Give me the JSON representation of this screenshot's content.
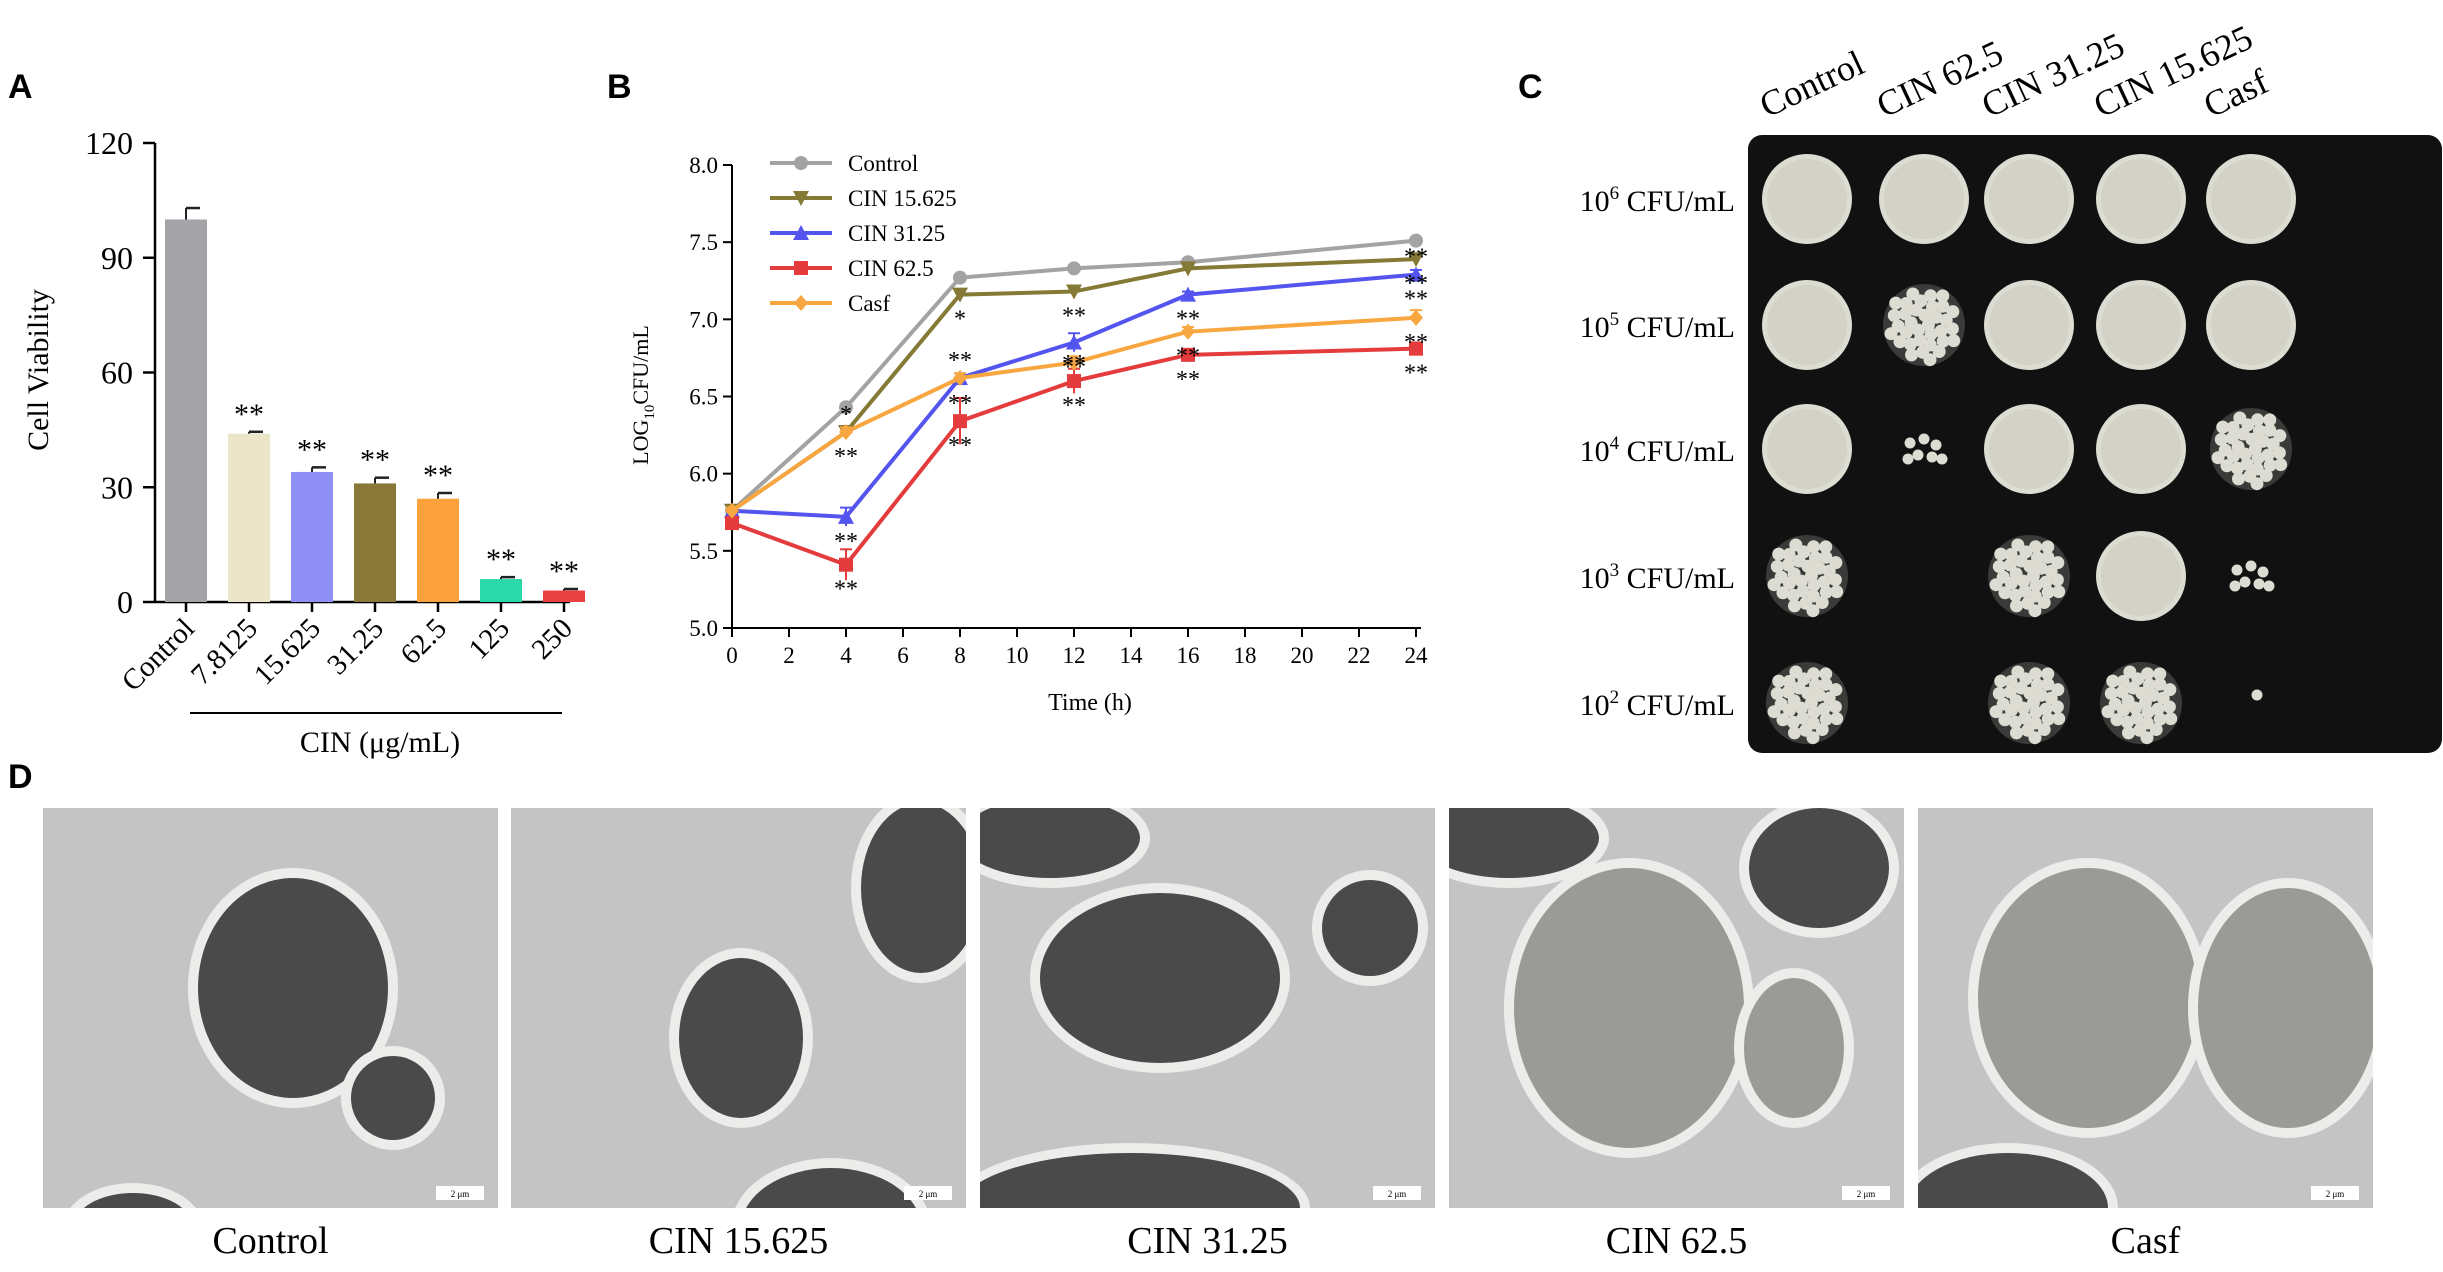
{
  "panel_labels": {
    "a": "A",
    "b": "B",
    "c": "C",
    "d": "D"
  },
  "colors": {
    "gray": "#a3a3a8",
    "cream": "#ece6c8",
    "periwinkle": "#8f8ff5",
    "olive": "#8a7838",
    "orange": "#fba23c",
    "mint": "#2bd9a8",
    "red": "#e84141",
    "line_control": "#a3a3a3",
    "line_olive": "#857936",
    "line_blue": "#5454ef",
    "line_red": "#e43c3c",
    "line_orange": "#f8a640",
    "plate": "#111112",
    "colony": "#dcdcd2",
    "tem_bg": "#c4c4c4",
    "tem_cell": "#4a4a4a"
  },
  "chart_data": [
    {
      "type": "bar",
      "ylabel": "Cell Viability",
      "xgroup_label": "CIN (μg/mL)",
      "ylim": [
        0,
        120
      ],
      "yticks": [
        0,
        30,
        60,
        90,
        120
      ],
      "categories": [
        "Control",
        "7.8125",
        "15.625",
        "31.25",
        "62.5",
        "125",
        "250"
      ],
      "values": [
        100,
        44,
        34,
        31,
        27,
        6,
        3
      ],
      "errors": [
        3,
        0.5,
        1.2,
        1.5,
        1.5,
        0.5,
        0.4
      ],
      "significance": [
        "",
        "**",
        "**",
        "**",
        "**",
        "**",
        "**"
      ],
      "bar_colors": [
        "#a3a3a8",
        "#ece6c8",
        "#8f8ff5",
        "#8a7838",
        "#fba23c",
        "#2bd9a8",
        "#e84141"
      ]
    },
    {
      "type": "line",
      "xlabel": "Time (h)",
      "ylabel_main": "LOG",
      "ylabel_sub": "10",
      "ylabel_rest": "CFU/mL",
      "xlim": [
        0,
        24
      ],
      "ylim": [
        5.0,
        8.0
      ],
      "xticks": [
        0,
        2,
        4,
        6,
        8,
        10,
        12,
        14,
        16,
        18,
        20,
        22,
        24
      ],
      "yticks": [
        "5.0",
        "5.5",
        "6.0",
        "6.5",
        "7.0",
        "7.5",
        "8.0"
      ],
      "x": [
        0,
        4,
        8,
        12,
        16,
        24
      ],
      "legend_position": "top-left",
      "series": [
        {
          "name": "Control",
          "marker": "circle",
          "color": "#a3a3a3",
          "values": [
            5.76,
            6.43,
            7.27,
            7.33,
            7.37,
            7.51
          ],
          "errors": [
            0.02,
            0.02,
            0.02,
            0.02,
            0.02,
            0.02
          ],
          "labels_above": [
            "",
            "",
            "",
            "",
            "",
            ""
          ],
          "labels_below": [
            "",
            "",
            "",
            "",
            "",
            ""
          ]
        },
        {
          "name": "CIN 15.625",
          "marker": "triangle-down",
          "color": "#857936",
          "values": [
            5.76,
            6.27,
            7.16,
            7.18,
            7.33,
            7.39
          ],
          "errors": [
            0.02,
            0.03,
            0.03,
            0.03,
            0.02,
            0.02
          ],
          "labels_above": [
            "",
            "*",
            "",
            "",
            "",
            ""
          ],
          "labels_below": [
            "",
            "**",
            "*",
            "**",
            "",
            "**"
          ]
        },
        {
          "name": "CIN 31.25",
          "marker": "triangle-up",
          "color": "#5454ef",
          "values": [
            5.76,
            5.72,
            6.62,
            6.85,
            7.16,
            7.29
          ],
          "errors": [
            0.02,
            0.06,
            0.03,
            0.06,
            0.02,
            0.03
          ],
          "labels_above": [
            "",
            "",
            "**",
            "",
            "",
            "**"
          ],
          "labels_below": [
            "",
            "**",
            "",
            "**",
            "**",
            "**"
          ]
        },
        {
          "name": "CIN 62.5",
          "marker": "square",
          "color": "#e43c3c",
          "values": [
            5.68,
            5.41,
            6.34,
            6.6,
            6.77,
            6.81
          ],
          "errors": [
            0.02,
            0.1,
            0.15,
            0.08,
            0.03,
            0.04
          ],
          "labels_above": [
            "",
            "",
            "**",
            "**",
            "",
            ""
          ],
          "labels_below": [
            "",
            "**",
            "**",
            "**",
            "**",
            "**"
          ]
        },
        {
          "name": "Casf",
          "marker": "diamond",
          "color": "#f8a640",
          "values": [
            5.76,
            6.27,
            6.62,
            6.72,
            6.92,
            7.01
          ],
          "errors": [
            0.02,
            0.03,
            0.03,
            0.04,
            0.03,
            0.05
          ],
          "labels_above": [
            "",
            "",
            "",
            "",
            "",
            ""
          ],
          "labels_below": [
            "",
            "",
            "",
            "",
            "**",
            "**"
          ]
        }
      ]
    }
  ],
  "spot_assay": {
    "columns": [
      "Control",
      "CIN 62.5",
      "CIN 31.25",
      "CIN 15.625",
      "Casf"
    ],
    "rows": [
      {
        "base": "10",
        "exp": "6",
        "unit": "CFU/mL"
      },
      {
        "base": "10",
        "exp": "5",
        "unit": " CFU/mL"
      },
      {
        "base": "10",
        "exp": "4",
        "unit": " CFU/mL"
      },
      {
        "base": "10",
        "exp": "3",
        "unit": " CFU/mL"
      },
      {
        "base": "10",
        "exp": "2",
        "unit": " CFU/mL"
      }
    ],
    "growth": [
      [
        "full",
        "full",
        "full",
        "full",
        "full"
      ],
      [
        "full",
        "colonies",
        "full",
        "full",
        "full"
      ],
      [
        "full",
        "few",
        "full",
        "full",
        "colonies"
      ],
      [
        "colonies",
        "none",
        "colonies",
        "full",
        "few"
      ],
      [
        "colonies",
        "none",
        "colonies",
        "colonies",
        "one"
      ]
    ]
  },
  "tem": {
    "scale_bar": "2 μm",
    "captions": [
      "Control",
      "CIN 15.625",
      "CIN 31.25",
      "CIN 62.5",
      "Casf"
    ]
  }
}
